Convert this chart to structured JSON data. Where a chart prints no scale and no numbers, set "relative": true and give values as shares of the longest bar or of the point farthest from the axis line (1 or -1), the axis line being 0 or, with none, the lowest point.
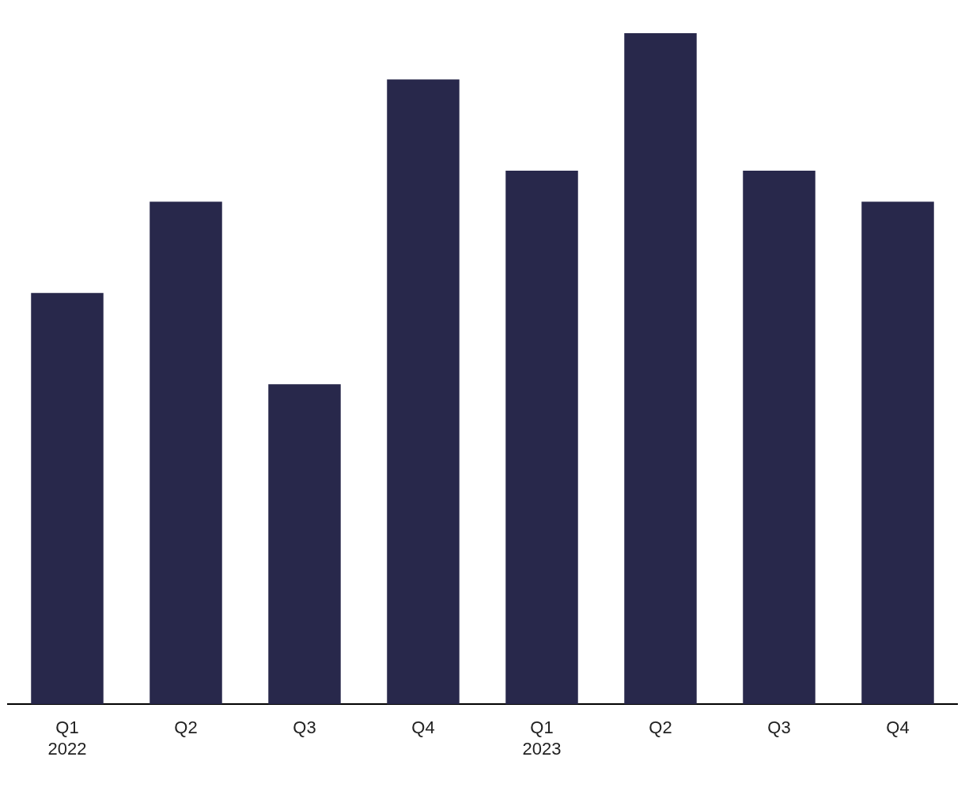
{
  "chart_data": {
    "type": "bar",
    "relative": true,
    "categories": [
      "Q1\n2022",
      "Q2",
      "Q3",
      "Q4",
      "Q1\n2023",
      "Q2",
      "Q3",
      "Q4"
    ],
    "values": [
      0.613,
      0.749,
      0.477,
      0.931,
      0.795,
      1,
      0.795,
      0.749
    ],
    "color": "#28284b",
    "grid": false,
    "legend": false
  }
}
